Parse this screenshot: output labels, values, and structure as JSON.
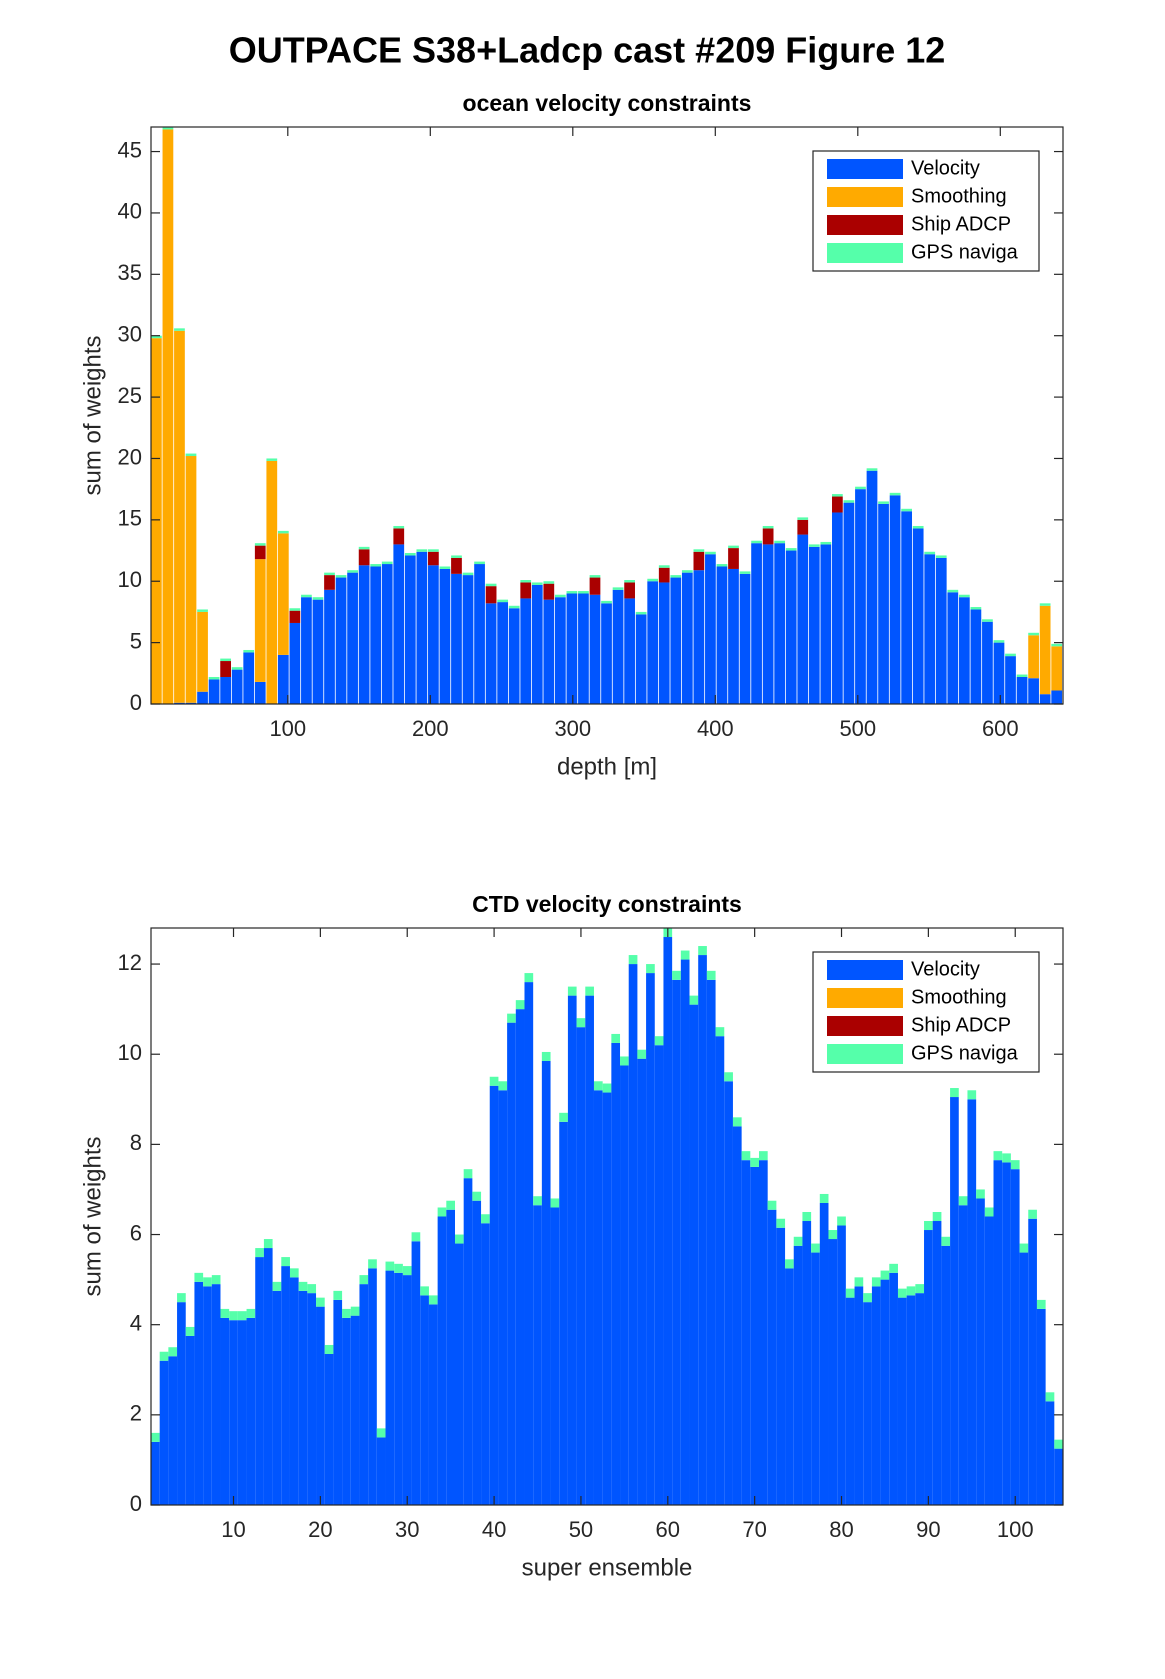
{
  "title": "OUTPACE S38+Ladcp cast #209  Figure 12",
  "chart_data": [
    {
      "type": "histogram",
      "stacked": true,
      "title": "ocean velocity constraints",
      "x_label": "depth [m]",
      "y_label": "sum of weights",
      "bins": [
        4,
        12.1,
        20.2,
        28.3,
        36.4,
        44.5,
        52.6,
        60.7,
        68.8,
        76.9,
        85,
        93.1,
        101.2,
        109.3,
        117.4,
        125.5,
        133.6,
        141.7,
        149.8,
        157.9,
        166,
        174.1,
        182.2,
        190.3,
        198.4,
        206.5,
        214.6,
        222.7,
        230.8,
        238.9,
        247,
        255.1,
        263.2,
        271.3,
        279.4,
        287.5,
        295.6,
        303.7,
        311.8,
        319.9,
        328,
        336.1,
        344.2,
        352.3,
        360.4,
        368.5,
        376.6,
        384.7,
        392.8,
        400.9,
        409,
        417.1,
        425.2,
        433.3,
        441.4,
        449.5,
        457.6,
        465.7,
        473.8,
        481.9,
        490,
        498.1,
        506.2,
        514.3,
        522.4,
        530.5,
        538.6,
        546.7,
        554.8,
        562.9,
        571,
        579.1,
        587.2,
        595.3,
        603.4,
        611.5,
        619.6,
        627.7,
        635.8,
        643.9
      ],
      "series": [
        {
          "name": "Velocity",
          "color": "#0055ff",
          "values": [
            0,
            0,
            0.1,
            0.1,
            1.0,
            2.0,
            2.2,
            2.8,
            4.2,
            1.8,
            0,
            4.0,
            6.6,
            8.7,
            8.5,
            9.3,
            10.3,
            10.7,
            11.3,
            11.2,
            11.4,
            13.0,
            12.1,
            12.4,
            11.3,
            11.0,
            10.6,
            10.5,
            11.4,
            8.2,
            8.3,
            7.8,
            8.6,
            9.7,
            8.5,
            8.7,
            9.0,
            9.0,
            8.9,
            8.2,
            9.3,
            8.6,
            7.3,
            10.0,
            9.9,
            10.3,
            10.7,
            10.9,
            12.2,
            11.2,
            11.0,
            10.6,
            13.1,
            13.0,
            13.1,
            12.5,
            13.8,
            12.8,
            13.0,
            15.6,
            16.4,
            17.5,
            19.0,
            16.3,
            17.0,
            15.7,
            14.3,
            12.2,
            11.9,
            9.1,
            8.7,
            7.7,
            6.7,
            5.0,
            3.9,
            2.2,
            2.1,
            0.8,
            1.1
          ]
        },
        {
          "name": "Smoothing",
          "color": "#ffaa00",
          "values": [
            29.8,
            46.8,
            30.3,
            20.1,
            6.5,
            0,
            0,
            0,
            0,
            10.0,
            19.8,
            9.9,
            0,
            0,
            0,
            0,
            0,
            0,
            0,
            0,
            0,
            0,
            0,
            0,
            0,
            0,
            0,
            0,
            0,
            0,
            0,
            0,
            0,
            0,
            0,
            0,
            0,
            0,
            0,
            0,
            0,
            0,
            0,
            0,
            0,
            0,
            0,
            0,
            0,
            0,
            0,
            0,
            0,
            0,
            0,
            0,
            0,
            0,
            0,
            0,
            0,
            0,
            0,
            0,
            0,
            0,
            0,
            0,
            0,
            0,
            0,
            0,
            0,
            0,
            0,
            0,
            3.5,
            7.2,
            3.6
          ]
        },
        {
          "name": "Ship ADCP",
          "color": "#aa0000",
          "values": [
            0,
            0,
            0,
            0,
            0,
            0,
            1.3,
            0,
            0,
            1.1,
            0,
            0,
            1.0,
            0,
            0,
            1.2,
            0,
            0,
            1.3,
            0,
            0,
            1.3,
            0,
            0,
            1.1,
            0,
            1.3,
            0,
            0,
            1.4,
            0,
            0,
            1.3,
            0,
            1.3,
            0,
            0,
            0,
            1.4,
            0,
            0,
            1.3,
            0,
            0,
            1.2,
            0,
            0,
            1.5,
            0,
            0,
            1.7,
            0,
            0,
            1.3,
            0,
            0,
            1.2,
            0,
            0,
            1.3,
            0,
            0,
            0,
            0,
            0,
            0,
            0,
            0,
            0,
            0,
            0,
            0,
            0,
            0,
            0,
            0,
            0,
            0,
            0
          ]
        },
        {
          "name": "GPS naviga",
          "color": "#55ffaa",
          "values": [
            0.2,
            0.2,
            0.2,
            0.2,
            0.2,
            0.2,
            0.2,
            0.2,
            0.2,
            0.2,
            0.2,
            0.2,
            0.2,
            0.2,
            0.2,
            0.2,
            0.2,
            0.2,
            0.2,
            0.2,
            0.2,
            0.2,
            0.2,
            0.2,
            0.2,
            0.2,
            0.2,
            0.2,
            0.2,
            0.2,
            0.2,
            0.2,
            0.2,
            0.2,
            0.2,
            0.2,
            0.2,
            0.2,
            0.2,
            0.2,
            0.2,
            0.2,
            0.2,
            0.2,
            0.2,
            0.2,
            0.2,
            0.2,
            0.2,
            0.2,
            0.2,
            0.2,
            0.2,
            0.2,
            0.2,
            0.2,
            0.2,
            0.2,
            0.2,
            0.2,
            0.2,
            0.2,
            0.2,
            0.2,
            0.2,
            0.2,
            0.2,
            0.2,
            0.2,
            0.2,
            0.2,
            0.2,
            0.2,
            0.2,
            0.2,
            0.2,
            0.2,
            0.2,
            0.2
          ]
        }
      ],
      "xlim": [
        4,
        644
      ],
      "xticks": [
        100,
        200,
        300,
        400,
        500,
        600
      ],
      "ylim": [
        0,
        47
      ],
      "yticks": [
        0,
        5,
        10,
        15,
        20,
        25,
        30,
        35,
        40,
        45
      ],
      "legend": "upper right"
    },
    {
      "type": "bar",
      "stacked": true,
      "title": "CTD velocity constraints",
      "x_label": "super ensemble",
      "y_label": "sum of weights",
      "x": [
        1,
        2,
        3,
        4,
        5,
        6,
        7,
        8,
        9,
        10,
        11,
        12,
        13,
        14,
        15,
        16,
        17,
        18,
        19,
        20,
        21,
        22,
        23,
        24,
        25,
        26,
        27,
        28,
        29,
        30,
        31,
        32,
        33,
        34,
        35,
        36,
        37,
        38,
        39,
        40,
        41,
        42,
        43,
        44,
        45,
        46,
        47,
        48,
        49,
        50,
        51,
        52,
        53,
        54,
        55,
        56,
        57,
        58,
        59,
        60,
        61,
        62,
        63,
        64,
        65,
        66,
        67,
        68,
        69,
        70,
        71,
        72,
        73,
        74,
        75,
        76,
        77,
        78,
        79,
        80,
        81,
        82,
        83,
        84,
        85,
        86,
        87,
        88,
        89,
        90,
        91,
        92,
        93,
        94,
        95,
        96,
        97,
        98,
        99,
        100,
        101,
        102,
        103,
        104,
        105
      ],
      "series": [
        {
          "name": "Velocity",
          "color": "#0055ff",
          "values": [
            1.4,
            3.2,
            3.3,
            4.5,
            3.75,
            4.95,
            4.85,
            4.9,
            4.15,
            4.1,
            4.1,
            4.15,
            5.5,
            5.7,
            4.75,
            5.3,
            5.05,
            4.75,
            4.7,
            4.4,
            3.35,
            4.55,
            4.15,
            4.2,
            4.9,
            5.25,
            1.5,
            5.2,
            5.15,
            5.1,
            5.85,
            4.65,
            4.45,
            6.4,
            6.55,
            5.8,
            7.25,
            6.75,
            6.25,
            9.3,
            9.2,
            10.7,
            11.0,
            11.6,
            6.65,
            9.85,
            6.6,
            8.5,
            11.3,
            10.6,
            11.3,
            9.2,
            9.15,
            10.25,
            9.75,
            12.0,
            9.9,
            11.8,
            10.2,
            12.6,
            11.65,
            12.1,
            11.1,
            12.2,
            11.65,
            10.4,
            9.4,
            8.4,
            7.65,
            7.5,
            7.65,
            6.55,
            6.15,
            5.25,
            5.75,
            6.3,
            5.6,
            6.7,
            5.9,
            6.2,
            4.6,
            4.85,
            4.5,
            4.85,
            5.0,
            5.15,
            4.6,
            4.65,
            4.7,
            6.1,
            6.3,
            5.75,
            9.05,
            6.65,
            9.0,
            6.8,
            6.4,
            7.65,
            7.6,
            7.45,
            5.6,
            6.35,
            4.35,
            2.3,
            1.25
          ]
        },
        {
          "name": "Smoothing",
          "color": "#ffaa00",
          "values": [
            0,
            0,
            0,
            0,
            0,
            0,
            0,
            0,
            0,
            0,
            0,
            0,
            0,
            0,
            0,
            0,
            0,
            0,
            0,
            0,
            0,
            0,
            0,
            0,
            0,
            0,
            0,
            0,
            0,
            0,
            0,
            0,
            0,
            0,
            0,
            0,
            0,
            0,
            0,
            0,
            0,
            0,
            0,
            0,
            0,
            0,
            0,
            0,
            0,
            0,
            0,
            0,
            0,
            0,
            0,
            0,
            0,
            0,
            0,
            0,
            0,
            0,
            0,
            0,
            0,
            0,
            0,
            0,
            0,
            0,
            0,
            0,
            0,
            0,
            0,
            0,
            0,
            0,
            0,
            0,
            0,
            0,
            0,
            0,
            0,
            0,
            0,
            0,
            0,
            0,
            0,
            0,
            0,
            0,
            0,
            0,
            0,
            0,
            0,
            0,
            0,
            0,
            0,
            0,
            0
          ]
        },
        {
          "name": "Ship ADCP",
          "color": "#aa0000",
          "values": [
            0,
            0,
            0,
            0,
            0,
            0,
            0,
            0,
            0,
            0,
            0,
            0,
            0,
            0,
            0,
            0,
            0,
            0,
            0,
            0,
            0,
            0,
            0,
            0,
            0,
            0,
            0,
            0,
            0,
            0,
            0,
            0,
            0,
            0,
            0,
            0,
            0,
            0,
            0,
            0,
            0,
            0,
            0,
            0,
            0,
            0,
            0,
            0,
            0,
            0,
            0,
            0,
            0,
            0,
            0,
            0,
            0,
            0,
            0,
            0,
            0,
            0,
            0,
            0,
            0,
            0,
            0,
            0,
            0,
            0,
            0,
            0,
            0,
            0,
            0,
            0,
            0,
            0,
            0,
            0,
            0,
            0,
            0,
            0,
            0,
            0,
            0,
            0,
            0,
            0,
            0,
            0,
            0,
            0,
            0,
            0,
            0,
            0,
            0,
            0,
            0,
            0,
            0,
            0,
            0
          ]
        },
        {
          "name": "GPS naviga",
          "color": "#55ffaa",
          "values": [
            0.2,
            0.2,
            0.2,
            0.2,
            0.2,
            0.2,
            0.2,
            0.2,
            0.2,
            0.2,
            0.2,
            0.2,
            0.2,
            0.2,
            0.2,
            0.2,
            0.2,
            0.2,
            0.2,
            0.2,
            0.2,
            0.2,
            0.2,
            0.2,
            0.2,
            0.2,
            0.2,
            0.2,
            0.2,
            0.2,
            0.2,
            0.2,
            0.2,
            0.2,
            0.2,
            0.2,
            0.2,
            0.2,
            0.2,
            0.2,
            0.2,
            0.2,
            0.2,
            0.2,
            0.2,
            0.2,
            0.2,
            0.2,
            0.2,
            0.2,
            0.2,
            0.2,
            0.2,
            0.2,
            0.2,
            0.2,
            0.2,
            0.2,
            0.2,
            0.2,
            0.2,
            0.2,
            0.2,
            0.2,
            0.2,
            0.2,
            0.2,
            0.2,
            0.2,
            0.2,
            0.2,
            0.2,
            0.2,
            0.2,
            0.2,
            0.2,
            0.2,
            0.2,
            0.2,
            0.2,
            0.2,
            0.2,
            0.2,
            0.2,
            0.2,
            0.2,
            0.2,
            0.2,
            0.2,
            0.2,
            0.2,
            0.2,
            0.2,
            0.2,
            0.2,
            0.2,
            0.2,
            0.2,
            0.2,
            0.2,
            0.2,
            0.2,
            0.2,
            0.2,
            0.2
          ]
        }
      ],
      "xlim": [
        0.5,
        105.5
      ],
      "xticks": [
        10,
        20,
        30,
        40,
        50,
        60,
        70,
        80,
        90,
        100
      ],
      "ylim": [
        0,
        12.8
      ],
      "yticks": [
        0,
        2,
        4,
        6,
        8,
        10,
        12
      ],
      "legend": "upper right"
    }
  ]
}
